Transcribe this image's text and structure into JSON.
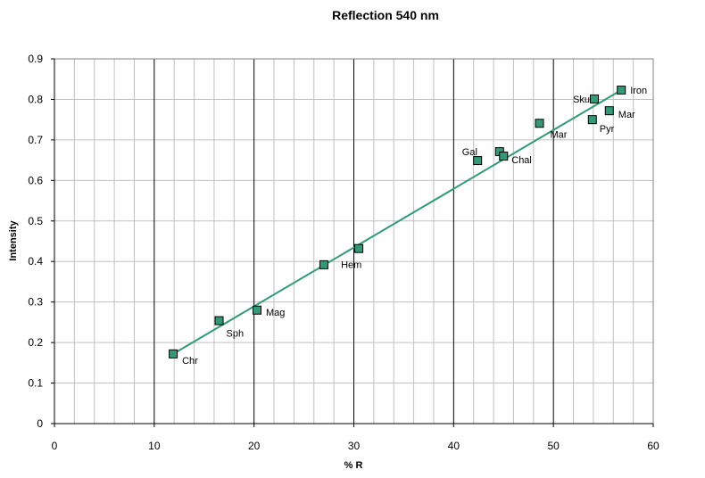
{
  "chart_data": {
    "type": "scatter",
    "title": "Reflection 540 nm",
    "xlabel": "% R",
    "ylabel": "Intensity",
    "xlim": [
      0,
      60
    ],
    "ylim": [
      0,
      0.9
    ],
    "x_ticks": [
      "0",
      "10",
      "20",
      "30",
      "40",
      "50",
      "60"
    ],
    "y_ticks": [
      "0",
      "0.1",
      "0.2",
      "0.3",
      "0.4",
      "0.5",
      "0.6",
      "0.7",
      "0.8",
      "0.9"
    ],
    "grid": {
      "x_major": true,
      "x_minor": true,
      "y_major": true
    },
    "points": [
      {
        "label": "Chr",
        "x": 11.9,
        "y": 0.172
      },
      {
        "label": "Sph",
        "x": 16.5,
        "y": 0.254
      },
      {
        "label": "Mag",
        "x": 20.3,
        "y": 0.28
      },
      {
        "label": "",
        "x": 27.0,
        "y": 0.392
      },
      {
        "label": "Hem",
        "x": 30.5,
        "y": 0.432
      },
      {
        "label": "",
        "x": 42.4,
        "y": 0.649
      },
      {
        "label": "Gal",
        "x": 44.6,
        "y": 0.671
      },
      {
        "label": "Chal",
        "x": 45.0,
        "y": 0.66
      },
      {
        "label": "Mar",
        "x": 48.6,
        "y": 0.741
      },
      {
        "label": "Pyr",
        "x": 53.9,
        "y": 0.75
      },
      {
        "label": "Sku",
        "x": 54.1,
        "y": 0.801
      },
      {
        "label": "Mar",
        "x": 55.6,
        "y": 0.772
      },
      {
        "label": "Iron",
        "x": 56.8,
        "y": 0.823
      }
    ],
    "trendline": {
      "x": [
        11.9,
        56.8
      ],
      "y": [
        0.172,
        0.823
      ]
    },
    "colors": {
      "marker": "#339977",
      "trendline": "#339977",
      "grid": "#c0c0c0",
      "major_grid": "#000000"
    }
  }
}
